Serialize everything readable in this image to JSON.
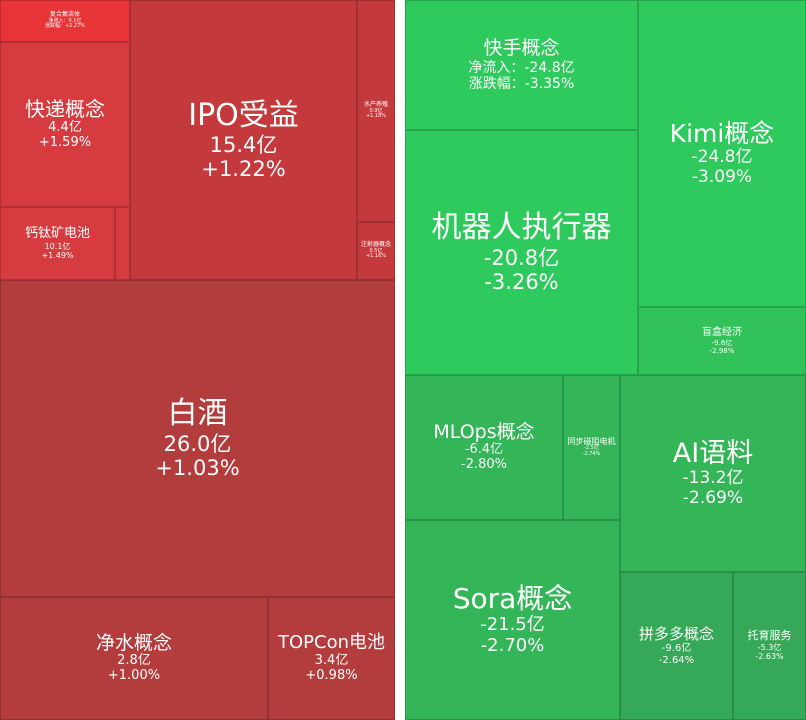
{
  "tiles": {
    "left": [
      {
        "name": "复合集流体",
        "net": "净流入：0.1亿",
        "change": "涨跌幅：+2.27%"
      },
      {
        "name": "快递概念",
        "net": "4.4亿",
        "change": "+1.59%"
      },
      {
        "name": "钙钛矿电池",
        "net": "10.1亿",
        "change": "+1.49%"
      },
      {
        "name": "IPO受益",
        "net": "15.4亿",
        "change": "+1.22%"
      },
      {
        "name": "水产养殖",
        "net": "0.9亿",
        "change": "+1.18%"
      },
      {
        "name": "注射器概念",
        "net": "0.5亿",
        "change": "+1.16%"
      },
      {
        "name": "白酒",
        "net": "26.0亿",
        "change": "+1.03%"
      },
      {
        "name": "净水概念",
        "net": "2.8亿",
        "change": "+1.00%"
      },
      {
        "name": "TOPCon电池",
        "net": "3.4亿",
        "change": "+0.98%"
      }
    ],
    "right": [
      {
        "name": "快手概念",
        "net": "净流入：-24.8亿",
        "change": "涨跌幅：-3.35%"
      },
      {
        "name": "Kimi概念",
        "net": "-24.8亿",
        "change": "-3.09%"
      },
      {
        "name": "机器人执行器",
        "net": "-20.8亿",
        "change": "-3.26%"
      },
      {
        "name": "盲盒经济",
        "net": "-9.6亿",
        "change": "-2.98%"
      },
      {
        "name": "MLOps概念",
        "net": "-6.4亿",
        "change": "-2.80%"
      },
      {
        "name": "同步磁阻电机",
        "net": "-2.5亿",
        "change": "-2.74%"
      },
      {
        "name": "AI语料",
        "net": "-13.2亿",
        "change": "-2.69%"
      },
      {
        "name": "Sora概念",
        "net": "-21.5亿",
        "change": "-2.70%"
      },
      {
        "name": "拼多多概念",
        "net": "-9.6亿",
        "change": "-2.64%"
      },
      {
        "name": "托育服务",
        "net": "-5.3亿",
        "change": "-2.63%"
      }
    ]
  }
}
